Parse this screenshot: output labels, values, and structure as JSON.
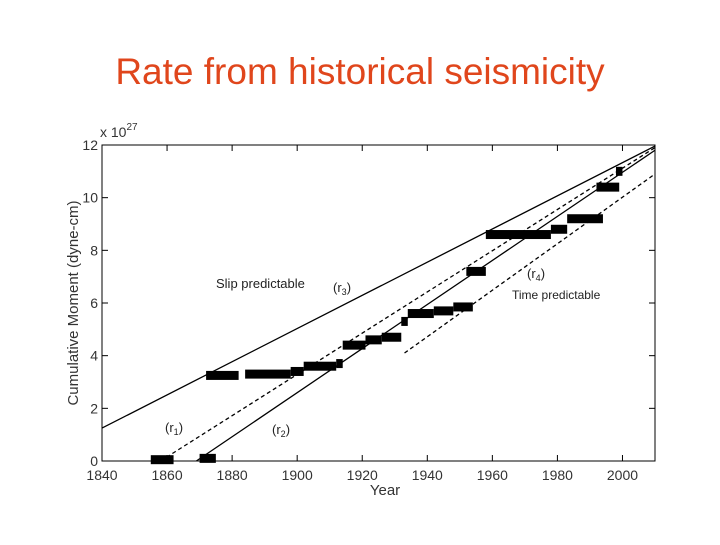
{
  "chart_data": {
    "type": "step",
    "title": "Rate from historical seismicity",
    "title_color": "#e0461c",
    "xlabel": "Year",
    "ylabel": "Cumulative Moment (dyne-cm)",
    "y_multiplier": "x 10",
    "y_exponent": "27",
    "xlim": [
      1840,
      2010
    ],
    "ylim": [
      0,
      12
    ],
    "xticks": [
      1840,
      1860,
      1880,
      1900,
      1920,
      1940,
      1960,
      1980,
      2000
    ],
    "yticks": [
      0,
      2,
      4,
      6,
      8,
      10,
      12
    ],
    "series": [
      {
        "color": "#000000",
        "x": [
          1855,
          1870,
          1872,
          1884,
          1898,
          1902,
          1912,
          1914,
          1921,
          1926,
          1932,
          1934,
          1942,
          1948,
          1952,
          1958,
          1978,
          1983,
          1992,
          1998
        ],
        "x_end": [
          1862,
          1875,
          1882,
          1898,
          1902,
          1912,
          1914,
          1921,
          1926,
          1932,
          1934,
          1942,
          1948,
          1954,
          1958,
          1978,
          1983,
          1994,
          1999,
          2000
        ],
        "values": [
          0.05,
          0.1,
          3.25,
          3.3,
          3.4,
          3.6,
          3.7,
          4.4,
          4.6,
          4.7,
          5.3,
          5.6,
          5.7,
          5.85,
          7.2,
          8.6,
          8.8,
          9.2,
          10.4,
          11.0
        ]
      }
    ],
    "reference_lines": [
      {
        "x": [
          1840,
          2010
        ],
        "values": [
          1.25,
          11.96
        ],
        "dashed": false
      },
      {
        "x": [
          1869,
          2010
        ],
        "values": [
          0,
          11.8
        ],
        "dashed": false
      },
      {
        "x": [
          1858,
          2010
        ],
        "values": [
          0,
          11.9
        ],
        "dashed": true
      },
      {
        "x": [
          1933,
          2010
        ],
        "values": [
          4.1,
          10.9
        ],
        "dashed": true
      }
    ],
    "annotations": [
      {
        "prefix": "Slip predictable"
      },
      {
        "prefix": "(r",
        "sub": "3",
        "suffix": ")"
      },
      {
        "prefix": "(r",
        "sub": "4",
        "suffix": ")"
      },
      {
        "prefix": "Time predictable"
      },
      {
        "prefix": "(r",
        "sub": "1",
        "suffix": ")"
      },
      {
        "prefix": "(r",
        "sub": "2",
        "suffix": ")"
      }
    ]
  }
}
